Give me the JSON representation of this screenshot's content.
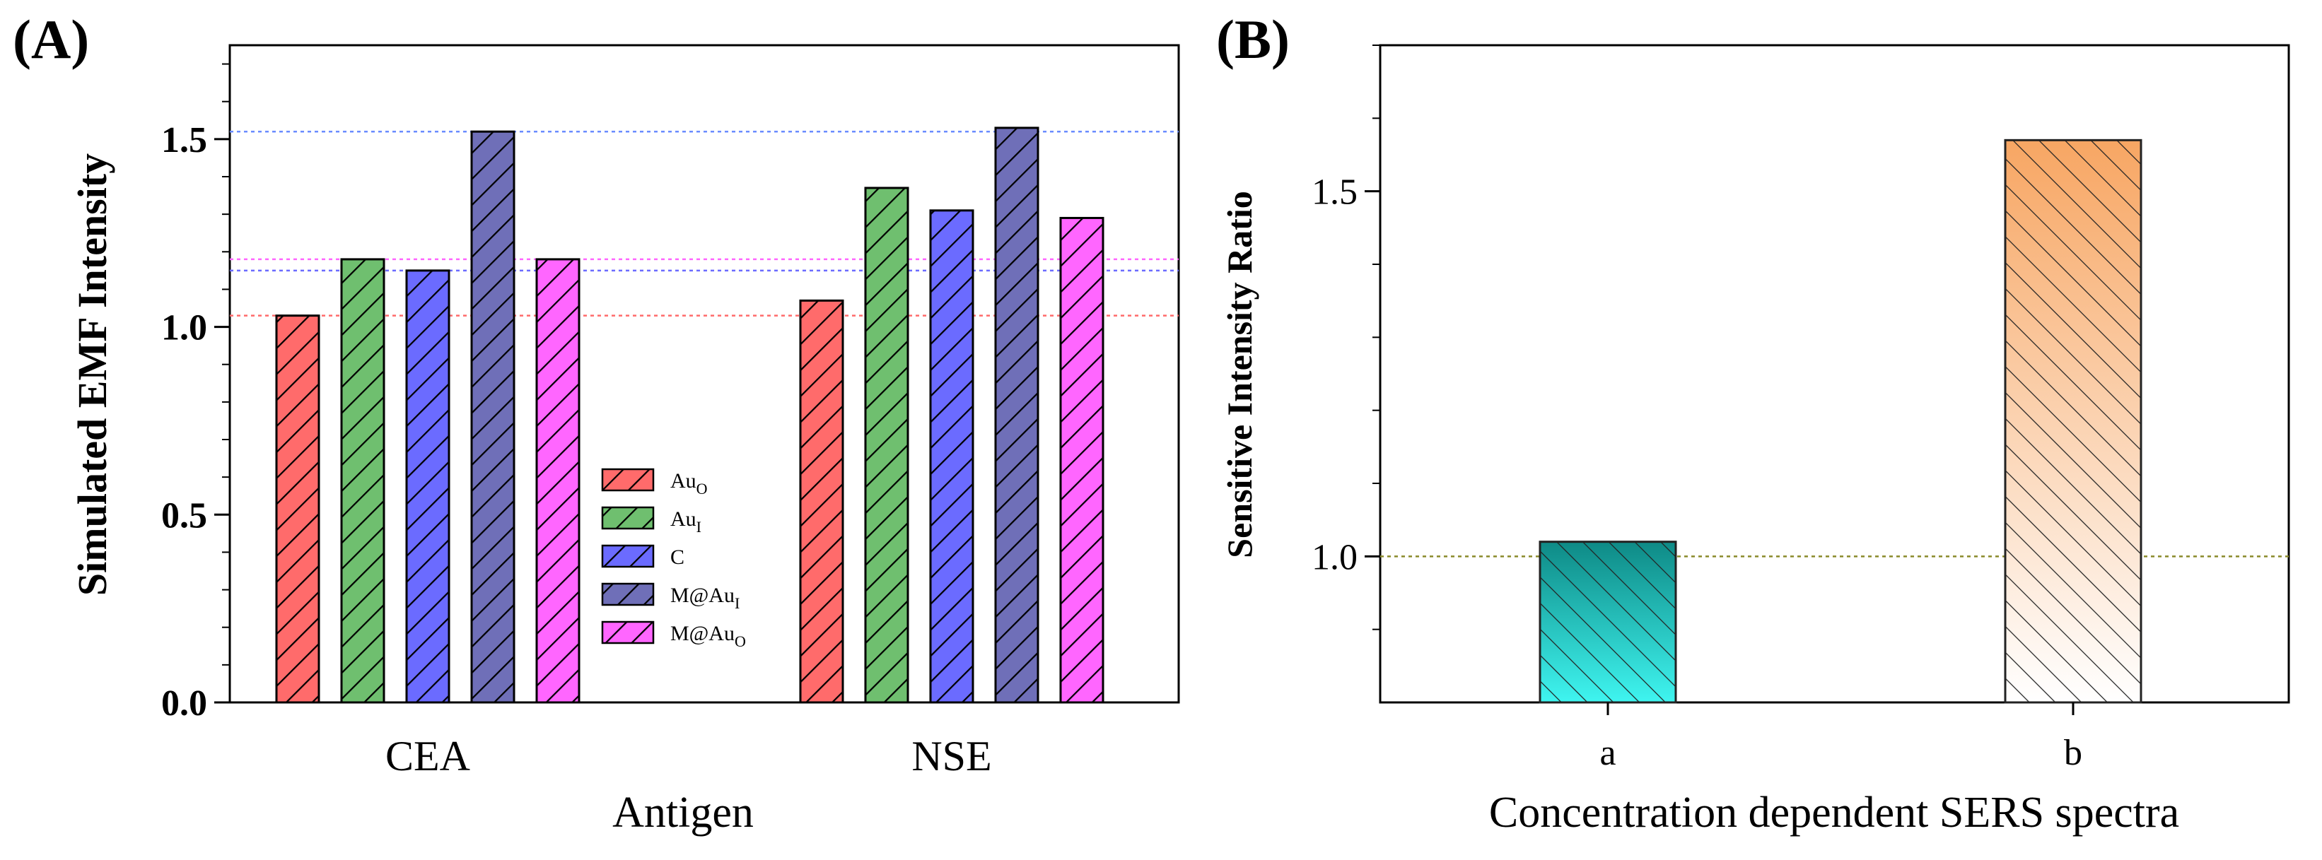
{
  "panels": {
    "a": {
      "label": "(A)"
    },
    "b": {
      "label": "(B)"
    }
  },
  "chart_data": [
    {
      "type": "bar",
      "ylabel": "Simulated EMF Intensity",
      "xlabel": "Antigen",
      "ylim": [
        0,
        1.75
      ],
      "yticks": [
        0.0,
        0.5,
        1.0,
        1.5
      ],
      "ytick_labels": [
        "0.0",
        "0.5",
        "1.0",
        "1.5"
      ],
      "categories": [
        "CEA",
        "NSE"
      ],
      "legend_position": "center",
      "series": [
        {
          "name": "Au",
          "name_subscript": "O",
          "color": "#ff6b6b",
          "values": [
            1.03,
            1.07
          ]
        },
        {
          "name": "Au",
          "name_subscript": "I",
          "color": "#6fbf6f",
          "values": [
            1.18,
            1.37
          ]
        },
        {
          "name": "C",
          "name_subscript": "",
          "color": "#6b6bff",
          "values": [
            1.15,
            1.31
          ]
        },
        {
          "name": "M@Au",
          "name_subscript": "I",
          "color": "#6f6fb8",
          "values": [
            1.52,
            1.53
          ]
        },
        {
          "name": "M@Au",
          "name_subscript": "O",
          "color": "#ff66ff",
          "values": [
            1.18,
            1.29
          ]
        }
      ],
      "reference_lines": [
        {
          "y": 1.03,
          "color": "#ff6b6b"
        },
        {
          "y": 1.15,
          "color": "#6b6bff"
        },
        {
          "y": 1.18,
          "color": "#ff66ff"
        },
        {
          "y": 1.52,
          "color": "#6b8cff"
        }
      ]
    },
    {
      "type": "bar",
      "ylabel": "Sensitive Intensity Ratio",
      "xlabel": "Concentration dependent SERS spectra",
      "ylim": [
        0.8,
        1.7
      ],
      "yticks": [
        1.0,
        1.5
      ],
      "ytick_labels": [
        "1.0",
        "1.5"
      ],
      "categories": [
        "a",
        "b"
      ],
      "values": [
        1.02,
        1.57
      ],
      "bar_colors": [
        {
          "top": "#0e8a86",
          "bottom": "#3ff5f0"
        },
        {
          "top": "#f7a663",
          "bottom": "#ffffff"
        }
      ],
      "reference_lines": [
        {
          "y": 1.0,
          "color": "#8a8a2a"
        }
      ]
    }
  ]
}
